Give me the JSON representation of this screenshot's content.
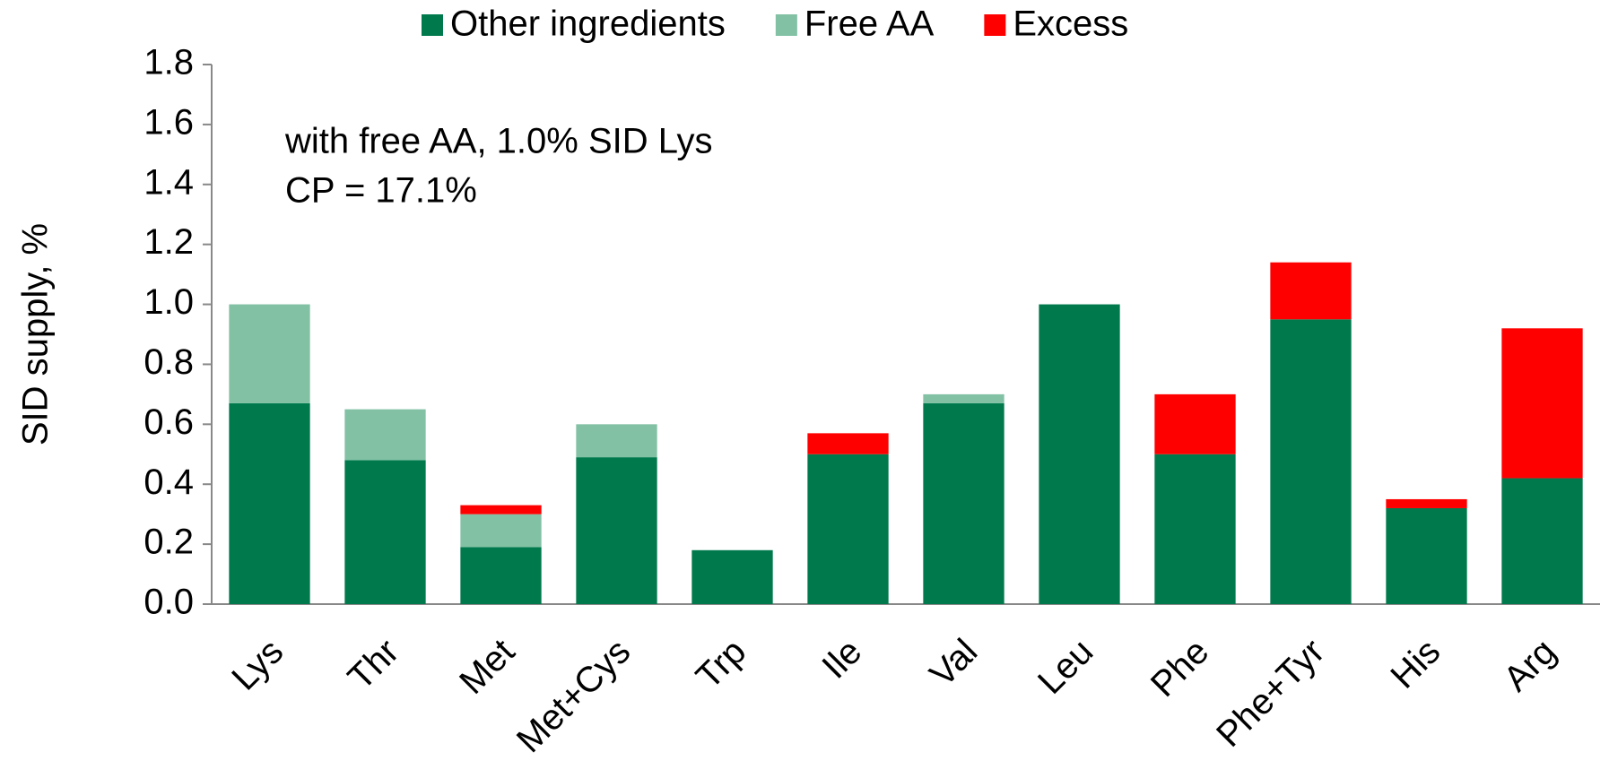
{
  "chart_data": {
    "type": "stacked_bar",
    "ylabel": "SID supply, %",
    "annotations": [
      "with free AA, 1.0% SID Lys",
      "CP = 17.1%"
    ],
    "categories": [
      "Lys",
      "Thr",
      "Met",
      "Met+Cys",
      "Trp",
      "Ile",
      "Val",
      "Leu",
      "Phe",
      "Phe+Tyr",
      "His",
      "Arg"
    ],
    "series": [
      {
        "name": "Other ingredients",
        "color": "#007a4d",
        "values": [
          0.67,
          0.48,
          0.19,
          0.49,
          0.18,
          0.5,
          0.67,
          1.0,
          0.5,
          0.95,
          0.32,
          0.42
        ]
      },
      {
        "name": "Free AA",
        "color": "#82c1a4",
        "values": [
          0.33,
          0.17,
          0.11,
          0.11,
          0,
          0,
          0.03,
          0,
          0,
          0,
          0,
          0
        ]
      },
      {
        "name": "Excess",
        "color": "#ff0000",
        "values": [
          0,
          0,
          0.03,
          0,
          0,
          0.07,
          0,
          0,
          0.2,
          0.19,
          0.03,
          0.5
        ]
      }
    ],
    "ylim": [
      0,
      1.8
    ],
    "yticks": [
      {
        "value": 0,
        "label": "0.0"
      },
      0.2,
      0.4,
      0.6,
      0.8,
      {
        "value": 1,
        "label": "1.0"
      },
      1.2,
      1.4,
      1.6,
      1.8
    ],
    "grid": false,
    "legend": "top"
  }
}
